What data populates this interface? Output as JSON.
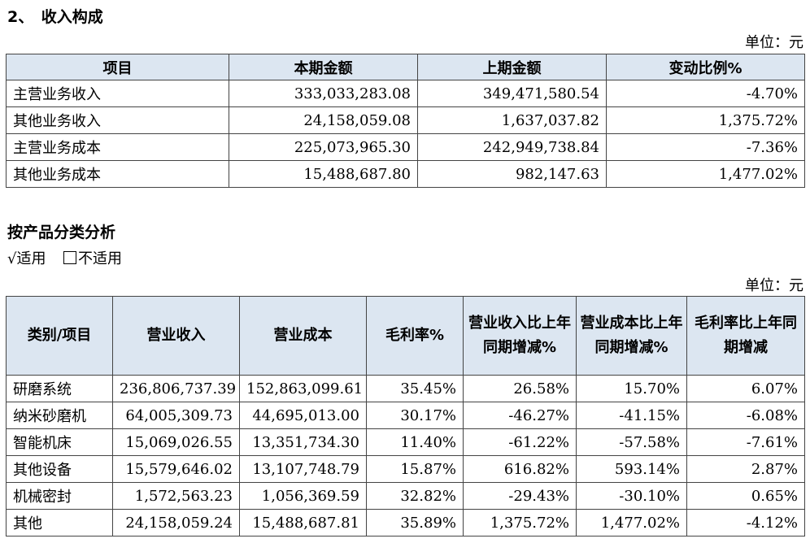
{
  "section1": {
    "title": "2、　收入构成",
    "unit": "单位：元",
    "headers": [
      "项目",
      "本期金额",
      "上期金额",
      "变动比例%"
    ],
    "rows": [
      [
        "主营业务收入",
        "333,033,283.08",
        "349,471,580.54",
        "-4.70%"
      ],
      [
        "其他业务收入",
        "24,158,059.08",
        "1,637,037.82",
        "1,375.72%"
      ],
      [
        "主营业务成本",
        "225,073,965.30",
        "242,949,738.84",
        "-7.36%"
      ],
      [
        "其他业务成本",
        "15,488,687.80",
        "982,147.63",
        "1,477.02%"
      ]
    ]
  },
  "section2": {
    "title": "按产品分类分析",
    "applicable_mark": "√",
    "applicable_label": "适用",
    "not_applicable_label": "不适用",
    "unit": "单位：元",
    "headers": [
      "类别/项目",
      "营业收入",
      "营业成本",
      "毛利率%",
      "营业收入比上年同期增减%",
      "营业成本比上年同期增减%",
      "毛利率比上年同期增减"
    ],
    "rows": [
      [
        "研磨系统",
        "236,806,737.39",
        "152,863,099.61",
        "35.45%",
        "26.58%",
        "15.70%",
        "6.07%"
      ],
      [
        "纳米砂磨机",
        "64,005,309.73",
        "44,695,013.00",
        "30.17%",
        "-46.27%",
        "-41.15%",
        "-6.08%"
      ],
      [
        "智能机床",
        "15,069,026.55",
        "13,351,734.30",
        "11.40%",
        "-61.22%",
        "-57.58%",
        "-7.61%"
      ],
      [
        "其他设备",
        "15,579,646.02",
        "13,107,748.79",
        "15.87%",
        "616.82%",
        "593.14%",
        "2.87%"
      ],
      [
        "机械密封",
        "1,572,563.23",
        "1,056,369.59",
        "32.82%",
        "-29.43%",
        "-30.10%",
        "0.65%"
      ],
      [
        "其他",
        "24,158,059.24",
        "15,488,687.81",
        "35.89%",
        "1,375.72%",
        "1,477.02%",
        "-4.12%"
      ]
    ]
  }
}
